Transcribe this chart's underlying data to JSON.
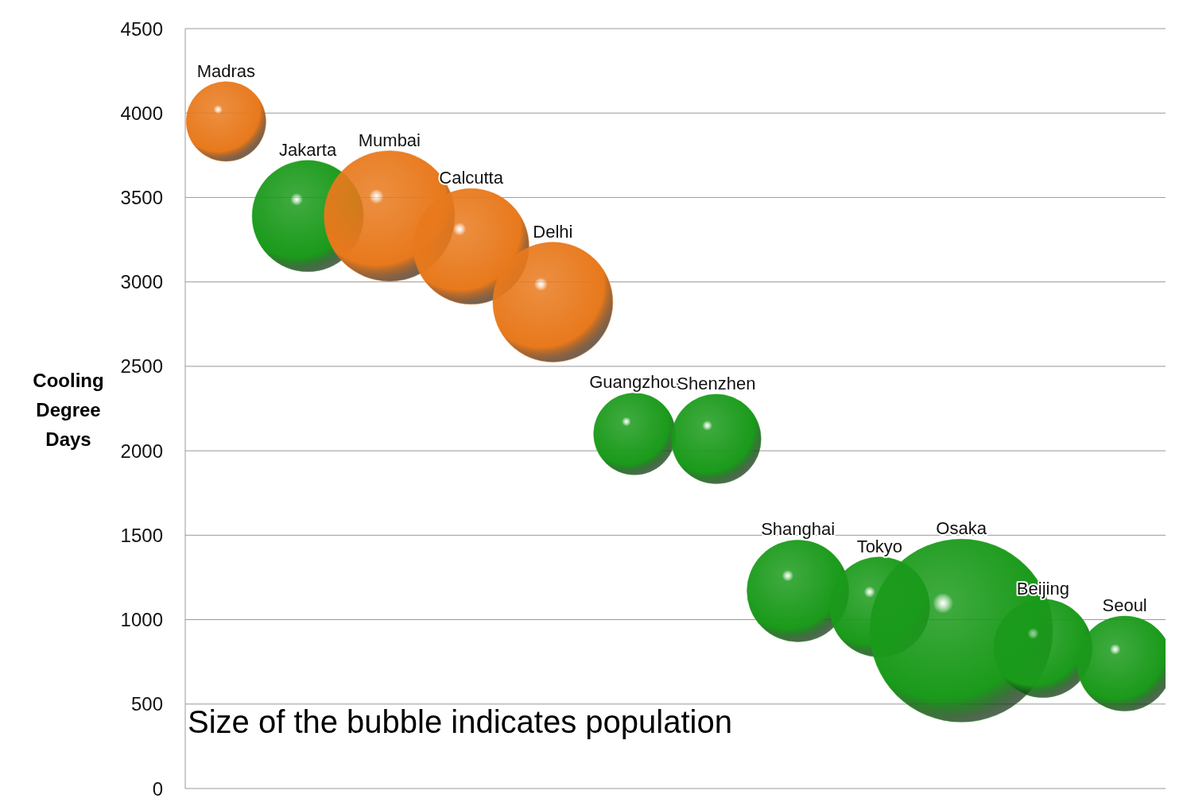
{
  "chart_data": {
    "type": "bubble",
    "ylabel": "Cooling Degree Days",
    "categories": [
      null,
      null,
      null,
      null,
      null,
      null,
      null,
      null,
      null,
      null,
      null,
      null
    ],
    "values": [
      3950,
      3390,
      3390,
      3210,
      2880,
      2100,
      2070,
      1170,
      1075,
      935,
      830,
      740
    ],
    "sizes": [
      0.19,
      0.37,
      0.51,
      0.4,
      0.43,
      0.2,
      0.24,
      0.31,
      0.3,
      1,
      0.29,
      0.27
    ],
    "colors": [
      "#e8791c",
      "#1a9a1a",
      "#e8791c",
      "#e8791c",
      "#e8791c",
      "#1a9a1a",
      "#1a9a1a",
      "#1a9a1a",
      "#1a9a1a",
      "#1a9a1a",
      "#1a9a1a",
      "#1a9a1a"
    ],
    "value_labels": [
      "Madras",
      "Jakarta",
      "Mumbai",
      "Calcutta",
      "Delhi",
      "Guangzhou",
      "Shenzhen",
      "Shanghai",
      "Tokyo",
      "Osaka",
      "Beijing",
      "Seoul"
    ],
    "ylim": [
      0,
      4500
    ],
    "yticks": [
      0,
      500,
      1000,
      1500,
      2000,
      2500,
      3000,
      3500,
      4000,
      4500
    ],
    "grid": "y",
    "tick_labels": "y",
    "legend": false,
    "annotations": [
      "Size of the bubble indicates population"
    ]
  }
}
